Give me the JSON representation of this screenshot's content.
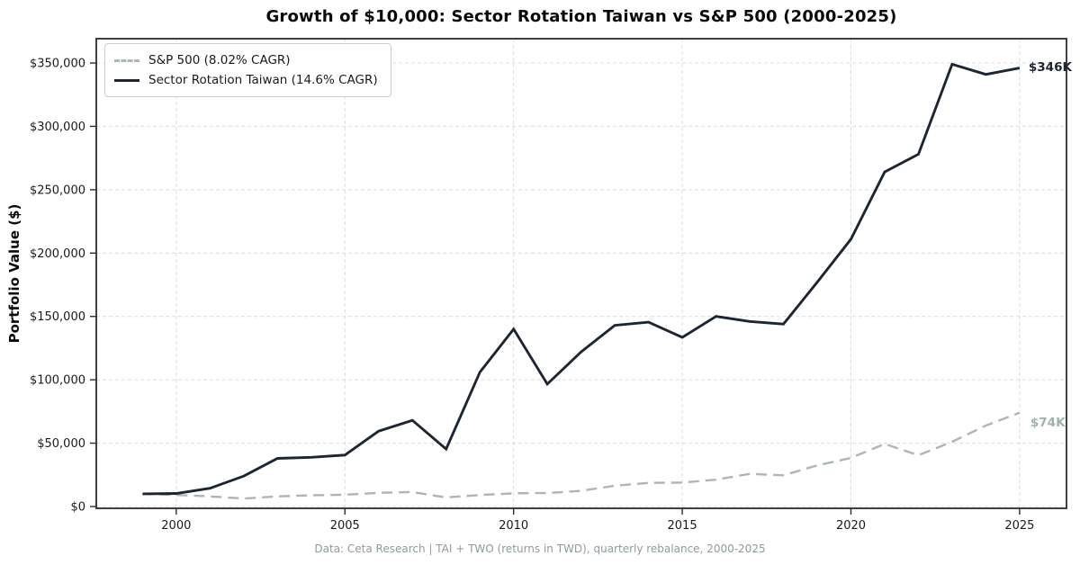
{
  "figure": {
    "title": "Growth of $10,000: Sector Rotation Taiwan vs S&P 500 (2000-2025)",
    "footer": "Data: Ceta Research | TAI + TWO (returns in TWD), quarterly rebalance, 2000-2025",
    "background": "#ffffff"
  },
  "colors": {
    "taiwan_line": "#1c2633",
    "sp500_line": "#a9b8b5",
    "sp500_label": "#9fb2ae",
    "grid": "#dcdcdc",
    "spine": "#2b2b2b",
    "tick_text": "#1a1a1a",
    "footer_text": "#8c9b9e"
  },
  "chart_data": {
    "type": "line",
    "title": "Growth of $10,000: Sector Rotation Taiwan vs S&P 500 (2000-2025)",
    "xlabel": "",
    "ylabel": "Portfolio Value ($)",
    "grid": true,
    "legend_position": "upper left",
    "x": [
      1999,
      2000,
      2001,
      2002,
      2003,
      2004,
      2005,
      2006,
      2007,
      2008,
      2009,
      2010,
      2011,
      2012,
      2013,
      2014,
      2015,
      2016,
      2017,
      2018,
      2019,
      2020,
      2021,
      2022,
      2023,
      2024,
      2025
    ],
    "series": [
      {
        "name": "S&P 500 (8.02% CAGR)",
        "style": "dashed",
        "color": "#a9b8b5",
        "end_label": "$74K",
        "end_label_color": "#9fb2ae",
        "values": [
          10000,
          9100,
          8000,
          6230,
          8020,
          8890,
          9330,
          10800,
          11400,
          7180,
          9080,
          10450,
          10670,
          12380,
          16390,
          18640,
          18900,
          21170,
          25780,
          24650,
          32410,
          38370,
          49390,
          40450,
          51090,
          63860,
          74000
        ]
      },
      {
        "name": "Sector Rotation Taiwan (14.6% CAGR)",
        "style": "solid",
        "color": "#1c2633",
        "end_label": "$346K",
        "end_label_color": "#1c2633",
        "values": [
          10000,
          10300,
          14400,
          24000,
          38000,
          38800,
          40600,
          59500,
          68000,
          45400,
          106000,
          140000,
          96600,
          122000,
          143000,
          145500,
          133500,
          150000,
          146000,
          144000,
          177000,
          211000,
          264000,
          278000,
          349000,
          341000,
          346000
        ]
      }
    ],
    "x_ticks": {
      "values": [
        2000,
        2005,
        2010,
        2015,
        2020,
        2025
      ],
      "labels": [
        "2000",
        "2005",
        "2010",
        "2015",
        "2020",
        "2025"
      ]
    },
    "y_ticks": {
      "values": [
        0,
        50000,
        100000,
        150000,
        200000,
        250000,
        300000,
        350000
      ],
      "labels": [
        "$0",
        "$50,000",
        "$100,000",
        "$150,000",
        "$200,000",
        "$250,000",
        "$300,000",
        "$350,000"
      ]
    },
    "xlim": [
      1997.63,
      2026.39
    ],
    "ylim": [
      -1420,
      369170
    ]
  }
}
